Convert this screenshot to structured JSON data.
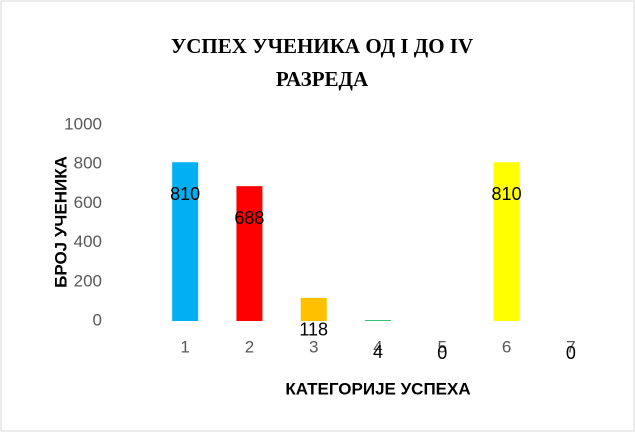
{
  "chart_data": {
    "type": "bar",
    "title": "УСПЕХ УЧЕНИКА ОД I ДО IV РАЗРЕДА",
    "x_label": "КАТЕГОРИЈЕ УСПЕХА",
    "y_label": "БРОЈ УЧЕНИКА",
    "categories": [
      "1",
      "2",
      "3",
      "4",
      "5",
      "6",
      "7"
    ],
    "values": [
      810,
      688,
      118,
      4,
      0,
      810,
      0
    ],
    "colors": [
      "#00b0f0",
      "#ff0000",
      "#ffc000",
      "#00b050",
      "#7030a0",
      "#ffff00",
      "#a5a5a5"
    ],
    "ylim": [
      0,
      1000
    ],
    "yticks": [
      0,
      200,
      400,
      600,
      800,
      1000
    ],
    "grid": false
  }
}
